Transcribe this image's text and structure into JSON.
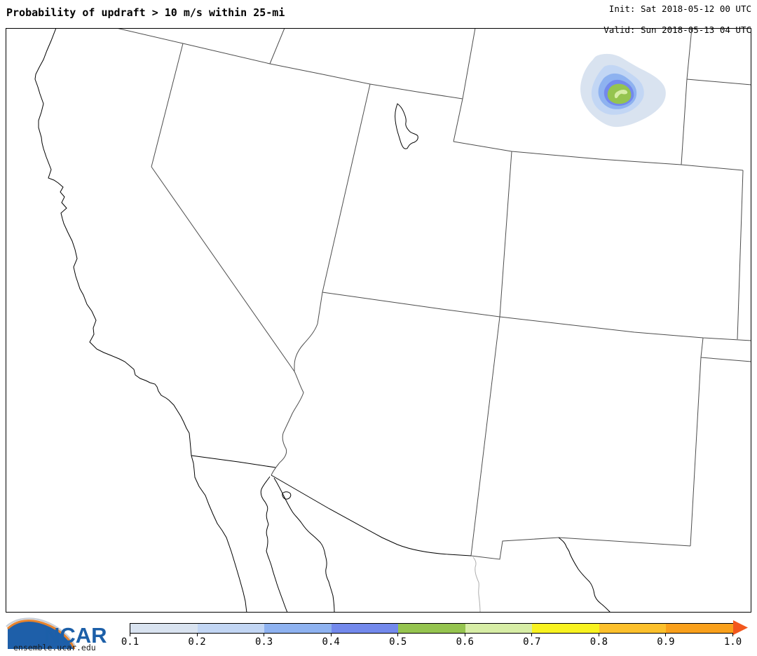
{
  "header": {
    "title": "Probability of updraft > 10 m/s within 25-mi",
    "init_line": "Init: Sat 2018-05-12 00 UTC",
    "valid_line": "Valid: Sun 2018-05-13 04 UTC"
  },
  "footer": {
    "brand": "NCAR",
    "site": "ensemble.ucar.edu",
    "brand_color": "#1c5fa8",
    "swoosh_blue": "#1e5fa9",
    "swoosh_orange": "#e8832c"
  },
  "colorbar": {
    "tick_labels": [
      "0.1",
      "0.2",
      "0.3",
      "0.4",
      "0.5",
      "0.6",
      "0.7",
      "0.8",
      "0.9",
      "1.0"
    ],
    "segment_colors": [
      "#d9e3f0",
      "#c2d6f4",
      "#8eb2f0",
      "#7389ec",
      "#95c44f",
      "#d7eda6",
      "#f8f220",
      "#fcc02c",
      "#f9a01b"
    ],
    "over_arrow_color": "#f2571d"
  },
  "chart_data": {
    "type": "heatmap",
    "title": "Probability of updraft > 10 m/s within 25-mi",
    "init_time": "Sat 2018-05-12 00 UTC",
    "valid_time": "Sun 2018-05-13 04 UTC",
    "units": "probability",
    "colorbar_ticks": [
      0.1,
      0.2,
      0.3,
      0.4,
      0.5,
      0.6,
      0.7,
      0.8,
      0.9,
      1.0
    ],
    "region": "Western United States and northern Mexico (CA, NV, UT, AZ, WY, CO, NM visible)",
    "feature": {
      "description": "single probability maximum in northeastern Wyoming",
      "contour_levels_shown": [
        0.1,
        0.2,
        0.3,
        0.4,
        0.5,
        0.6
      ],
      "peak_value_band": "0.6-0.7"
    },
    "legend_position": "bottom"
  }
}
